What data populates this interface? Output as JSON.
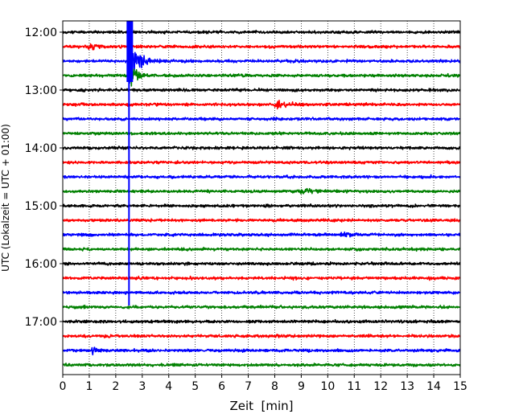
{
  "chart_data": {
    "type": "line",
    "title": "",
    "xlabel": "Zeit  [min]",
    "ylabel": "UTC (Lokalzeit = UTC + 01:00)",
    "xlim": [
      0,
      15
    ],
    "x_ticks": [
      "0",
      "1",
      "2",
      "3",
      "4",
      "5",
      "6",
      "7",
      "8",
      "9",
      "10",
      "11",
      "12",
      "13",
      "14",
      "15"
    ],
    "y_tick_labels": [
      "12:00",
      "13:00",
      "14:00",
      "15:00",
      "16:00",
      "17:00"
    ],
    "y_ticks_hours": [
      12,
      13,
      14,
      15,
      16,
      17
    ],
    "trace_interval_min": 15,
    "time_range": [
      "12:00",
      "17:45"
    ],
    "grid": "vertical dotted lines at each minute",
    "trace_colors": [
      "#000000",
      "#ff0000",
      "#0000ff",
      "#008000"
    ],
    "traces": [
      {
        "start": "12:00",
        "color": "#000000"
      },
      {
        "start": "12:15",
        "color": "#ff0000"
      },
      {
        "start": "12:30",
        "color": "#0000ff"
      },
      {
        "start": "12:45",
        "color": "#008000"
      },
      {
        "start": "13:00",
        "color": "#000000"
      },
      {
        "start": "13:15",
        "color": "#ff0000"
      },
      {
        "start": "13:30",
        "color": "#0000ff"
      },
      {
        "start": "13:45",
        "color": "#008000"
      },
      {
        "start": "14:00",
        "color": "#000000"
      },
      {
        "start": "14:15",
        "color": "#ff0000"
      },
      {
        "start": "14:30",
        "color": "#0000ff"
      },
      {
        "start": "14:45",
        "color": "#008000"
      },
      {
        "start": "15:00",
        "color": "#000000"
      },
      {
        "start": "15:15",
        "color": "#ff0000"
      },
      {
        "start": "15:30",
        "color": "#0000ff"
      },
      {
        "start": "15:45",
        "color": "#008000"
      },
      {
        "start": "16:00",
        "color": "#000000"
      },
      {
        "start": "16:15",
        "color": "#ff0000"
      },
      {
        "start": "16:30",
        "color": "#0000ff"
      },
      {
        "start": "16:45",
        "color": "#008000"
      },
      {
        "start": "17:00",
        "color": "#000000"
      },
      {
        "start": "17:15",
        "color": "#ff0000"
      },
      {
        "start": "17:30",
        "color": "#0000ff"
      },
      {
        "start": "17:45",
        "color": "#008000"
      }
    ],
    "events": [
      {
        "trace": "12:15",
        "minute": 1.0,
        "amplitude": 0.5
      },
      {
        "trace": "12:30",
        "minute": 2.5,
        "amplitude": 3.0
      },
      {
        "trace": "12:45",
        "minute": 2.5,
        "amplitude": 1.2
      },
      {
        "trace": "13:15",
        "minute": 8.05,
        "amplitude": 0.5
      },
      {
        "trace": "14:45",
        "minute": 9.0,
        "amplitude": 0.45
      },
      {
        "trace": "15:30",
        "minute": 10.5,
        "amplitude": 0.3
      },
      {
        "trace": "17:30",
        "minute": 1.1,
        "amplitude": 0.3
      }
    ],
    "clipped_trace_vertical_line": {
      "minute": 2.5,
      "from": "12:30",
      "to": "16:45"
    }
  }
}
